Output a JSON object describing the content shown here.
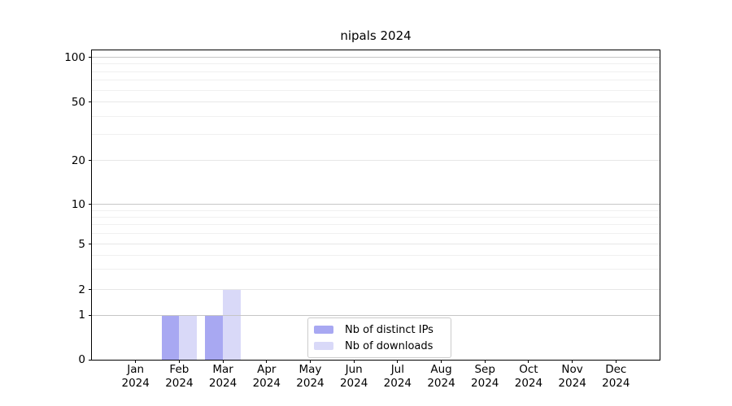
{
  "figure": {
    "background": "#ffffff",
    "frame_color": "#000000"
  },
  "chart_data": {
    "type": "bar",
    "title": "nipals 2024",
    "categories": [
      "Jan 2024",
      "Feb 2024",
      "Mar 2024",
      "Apr 2024",
      "May 2024",
      "Jun 2024",
      "Jul 2024",
      "Aug 2024",
      "Sep 2024",
      "Oct 2024",
      "Nov 2024",
      "Dec 2024"
    ],
    "series": [
      {
        "name": "Nb of distinct IPs",
        "color": "#a8a8f2",
        "values": [
          0,
          1,
          1,
          0,
          0,
          0,
          0,
          0,
          0,
          0,
          0,
          0
        ]
      },
      {
        "name": "Nb of downloads",
        "color": "#d9d9f8",
        "values": [
          0,
          1,
          2,
          0,
          0,
          0,
          0,
          0,
          0,
          0,
          0,
          0
        ]
      }
    ],
    "xlabel": "",
    "ylabel": "",
    "ylim": [
      0,
      100
    ],
    "yscale": "log-like with linear 0-1 segment",
    "y_major_ticks": [
      0,
      1,
      2,
      5,
      10,
      20,
      50,
      100
    ],
    "y_minor_ticks": [
      3,
      4,
      6,
      7,
      8,
      9,
      30,
      40,
      60,
      70,
      80,
      90
    ],
    "grid": true,
    "legend_position": "lower center"
  },
  "legend": {
    "items": [
      {
        "label": "Nb of distinct IPs",
        "color": "#a8a8f2"
      },
      {
        "label": "Nb of downloads",
        "color": "#d9d9f8"
      }
    ]
  }
}
